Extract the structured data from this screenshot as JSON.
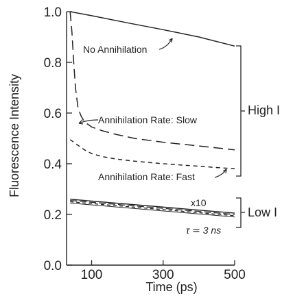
{
  "chart_data": {
    "type": "line",
    "xlabel": "Time (ps)",
    "ylabel": "Fluorescence Intensity",
    "xlim": [
      30,
      500
    ],
    "ylim": [
      0.0,
      1.0
    ],
    "xticks": [
      100,
      300,
      500
    ],
    "xtick_labels": [
      "100",
      "300",
      "500"
    ],
    "yticks": [
      0.0,
      0.2,
      0.4,
      0.6,
      0.8,
      1.0
    ],
    "ytick_labels": [
      "0.0",
      "0.2",
      "0.4",
      "0.6",
      "0.8",
      "1.0"
    ],
    "grid": false,
    "series": [
      {
        "x": [
          40,
          100,
          200,
          300,
          400,
          500
        ],
        "y": [
          1.0,
          0.984,
          0.956,
          0.929,
          0.9,
          0.864
        ]
      },
      {
        "x": [
          40,
          45,
          50,
          55,
          62,
          70,
          80,
          100,
          130,
          170,
          220,
          300,
          400,
          500
        ],
        "y": [
          1.0,
          0.92,
          0.8,
          0.7,
          0.62,
          0.59,
          0.565,
          0.545,
          0.53,
          0.515,
          0.5,
          0.485,
          0.47,
          0.455
        ]
      },
      {
        "x": [
          40,
          60,
          80,
          100,
          130,
          170,
          220,
          300,
          400,
          500
        ],
        "y": [
          0.495,
          0.475,
          0.455,
          0.44,
          0.428,
          0.418,
          0.41,
          0.4,
          0.39,
          0.38
        ]
      },
      {
        "x": [
          40,
          500
        ],
        "y": [
          0.26,
          0.205
        ]
      },
      {
        "x": [
          40,
          500
        ],
        "y": [
          0.255,
          0.2
        ]
      },
      {
        "x": [
          40,
          500
        ],
        "y": [
          0.25,
          0.195
        ]
      },
      {
        "x": [
          40,
          500
        ],
        "y": [
          0.245,
          0.19
        ]
      }
    ],
    "annotations": {
      "no_annihilation": "No Annihilation",
      "slow": "Annihilation Rate: Slow",
      "fast": "Annihilation Rate: Fast",
      "x10": "x10",
      "tau": "τ ≃ 3 ns"
    },
    "brackets": {
      "high": "High I",
      "low": "Low I"
    }
  }
}
